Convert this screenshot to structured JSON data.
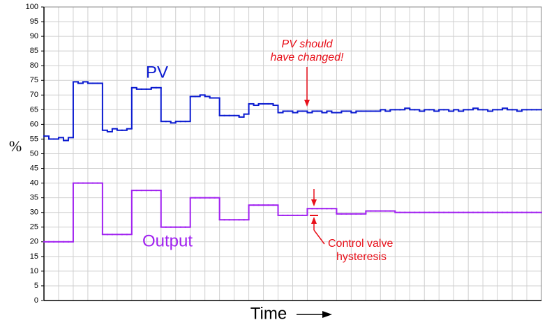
{
  "chart_data": {
    "type": "line",
    "drawstyle": "steps",
    "ylabel": "%",
    "xlabel": "Time",
    "ylim": [
      0,
      100
    ],
    "yticks": [
      0,
      5,
      10,
      15,
      20,
      25,
      30,
      35,
      40,
      45,
      50,
      55,
      60,
      65,
      70,
      75,
      80,
      85,
      90,
      95,
      100
    ],
    "grid": true,
    "series": [
      {
        "name": "PV",
        "color": "#0a1ad0",
        "values": [
          56,
          55,
          55,
          55.5,
          54.5,
          55.5,
          74.5,
          74,
          74.5,
          74,
          74,
          74,
          58,
          57.5,
          58.5,
          58,
          58,
          58.5,
          72.5,
          72,
          72,
          72,
          72.5,
          72.5,
          61,
          61,
          60.5,
          61,
          61,
          61,
          69.5,
          69.5,
          70,
          69.5,
          69,
          69,
          63,
          63,
          63,
          63,
          62.5,
          63.5,
          67,
          66.5,
          67,
          67,
          67,
          66.5,
          64,
          64.5,
          64.5,
          64,
          64.5,
          64.5,
          64,
          64.5,
          64.5,
          64,
          64.5,
          64,
          64,
          64.5,
          64.5,
          64,
          64.5,
          64.5,
          64.5,
          64.5,
          64.5,
          65,
          64.5,
          65,
          65,
          65,
          65.5,
          65,
          65,
          64.5,
          65,
          65,
          64.5,
          65,
          65,
          64.5,
          65,
          64.5,
          65,
          65,
          65.5,
          65,
          65,
          64.5,
          65,
          65,
          65.5,
          65,
          65,
          64.5,
          65,
          65,
          65,
          65
        ]
      },
      {
        "name": "Output",
        "color": "#a020f0",
        "values": [
          20,
          20,
          20,
          20,
          20,
          20,
          40,
          40,
          40,
          40,
          40,
          40,
          22.5,
          22.5,
          22.5,
          22.5,
          22.5,
          22.5,
          37.5,
          37.5,
          37.5,
          37.5,
          37.5,
          37.5,
          25,
          25,
          25,
          25,
          25,
          25,
          35,
          35,
          35,
          35,
          35,
          35,
          27.5,
          27.5,
          27.5,
          27.5,
          27.5,
          27.5,
          32.5,
          32.5,
          32.5,
          32.5,
          32.5,
          32.5,
          29,
          29,
          29,
          29,
          29,
          29,
          31.3,
          31.3,
          31.3,
          31.3,
          31.3,
          31.3,
          29.5,
          29.5,
          29.5,
          29.5,
          29.5,
          29.5,
          30.5,
          30.5,
          30.5,
          30.5,
          30.5,
          30.5,
          30,
          30,
          30,
          30,
          30,
          30,
          30,
          30,
          30,
          30,
          30,
          30,
          30,
          30,
          30,
          30,
          30,
          30,
          30,
          30,
          30,
          30,
          30,
          30,
          30,
          30,
          30,
          30,
          30,
          30
        ]
      }
    ],
    "annotations": [
      {
        "text": [
          "PV should",
          "have changed!"
        ],
        "color": "#e8101a"
      },
      {
        "text": [
          "Control valve",
          "hysteresis"
        ],
        "color": "#e8101a"
      }
    ]
  }
}
